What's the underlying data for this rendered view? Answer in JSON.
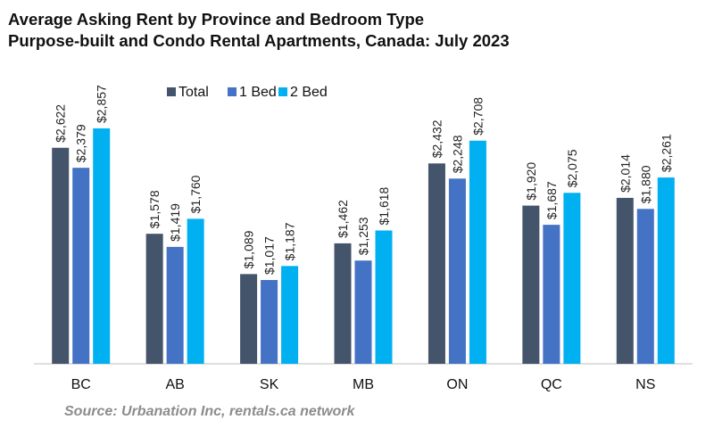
{
  "chart_data": {
    "type": "bar",
    "title": "Average Asking Rent by Province and Bedroom Type",
    "subtitle": "Purpose-built and Condo Rental Apartments, Canada: July 2023",
    "categories": [
      "BC",
      "AB",
      "SK",
      "MB",
      "ON",
      "QC",
      "NS"
    ],
    "series": [
      {
        "name": "Total",
        "color": "#44546a",
        "values": [
          2622,
          1578,
          1089,
          1462,
          2432,
          1920,
          2014
        ]
      },
      {
        "name": "1 Bed",
        "color": "#4472c4",
        "values": [
          2379,
          1419,
          1017,
          1253,
          2248,
          1687,
          1880
        ]
      },
      {
        "name": "2 Bed",
        "color": "#00b0f0",
        "values": [
          2857,
          1760,
          1187,
          1618,
          2708,
          2075,
          2261
        ]
      }
    ],
    "data_labels": [
      [
        "$2,622",
        "$1,578",
        "$1,089",
        "$1,462",
        "$2,432",
        "$1,920",
        "$2,014"
      ],
      [
        "$2,379",
        "$1,419",
        "$1,017",
        "$1,253",
        "$2,248",
        "$1,687",
        "$1,880"
      ],
      [
        "$2,857",
        "$1,760",
        "$1,187",
        "$1,618",
        "$2,708",
        "$2,075",
        "$2,261"
      ]
    ],
    "xlabel": "",
    "ylabel": "",
    "ylim": [
      0,
      3000
    ],
    "grid": false,
    "legend": "top-center"
  },
  "source": "Source: Urbanation Inc, rentals.ca network"
}
